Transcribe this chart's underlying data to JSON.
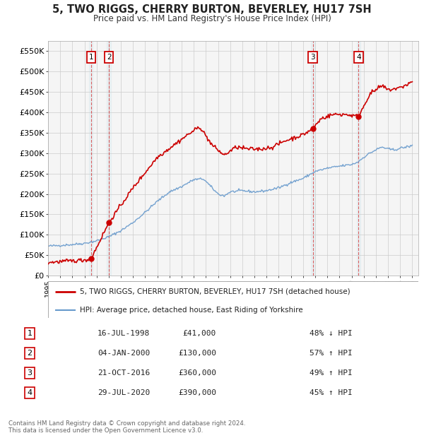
{
  "title": "5, TWO RIGGS, CHERRY BURTON, BEVERLEY, HU17 7SH",
  "subtitle": "Price paid vs. HM Land Registry's House Price Index (HPI)",
  "footer_line1": "Contains HM Land Registry data © Crown copyright and database right 2024.",
  "footer_line2": "This data is licensed under the Open Government Licence v3.0.",
  "legend_line1": "5, TWO RIGGS, CHERRY BURTON, BEVERLEY, HU17 7SH (detached house)",
  "legend_line2": "HPI: Average price, detached house, East Riding of Yorkshire",
  "sales_color": "#cc0000",
  "hpi_color": "#6699cc",
  "background_color": "#f5f5f5",
  "plot_bg": "#f5f5f5",
  "grid_color": "#cccccc",
  "ylim": [
    0,
    575000
  ],
  "yticks": [
    0,
    50000,
    100000,
    150000,
    200000,
    250000,
    300000,
    350000,
    400000,
    450000,
    500000,
    550000
  ],
  "ytick_labels": [
    "£0",
    "£50K",
    "£100K",
    "£150K",
    "£200K",
    "£250K",
    "£300K",
    "£350K",
    "£400K",
    "£450K",
    "£500K",
    "£550K"
  ],
  "sale_years_decimal": [
    1998.54,
    2000.01,
    2016.8,
    2020.57
  ],
  "sale_prices": [
    41000,
    130000,
    360000,
    390000
  ],
  "sale_labels": [
    "1",
    "2",
    "3",
    "4"
  ],
  "table_rows": [
    {
      "num": "1",
      "date": "16-JUL-1998",
      "price": "£41,000",
      "change": "48% ↓ HPI"
    },
    {
      "num": "2",
      "date": "04-JAN-2000",
      "price": "£130,000",
      "change": "57% ↑ HPI"
    },
    {
      "num": "3",
      "date": "21-OCT-2016",
      "price": "£360,000",
      "change": "49% ↑ HPI"
    },
    {
      "num": "4",
      "date": "29-JUL-2020",
      "price": "£390,000",
      "change": "45% ↑ HPI"
    }
  ],
  "hpi_anchors_x": [
    1995.0,
    1996.0,
    1997.0,
    1998.0,
    1999.0,
    2000.0,
    2001.0,
    2002.0,
    2003.0,
    2004.0,
    2005.0,
    2006.0,
    2007.0,
    2007.8,
    2008.5,
    2009.0,
    2009.5,
    2010.0,
    2011.0,
    2012.0,
    2013.0,
    2014.0,
    2015.0,
    2016.0,
    2017.0,
    2018.0,
    2019.0,
    2020.0,
    2020.5,
    2021.0,
    2021.5,
    2022.0,
    2022.5,
    2023.0,
    2023.5,
    2024.0,
    2024.5,
    2025.0
  ],
  "hpi_anchors_y": [
    72000,
    74000,
    76000,
    79000,
    85000,
    95000,
    110000,
    130000,
    155000,
    182000,
    205000,
    218000,
    235000,
    237000,
    215000,
    200000,
    195000,
    205000,
    208000,
    205000,
    208000,
    215000,
    228000,
    238000,
    255000,
    263000,
    268000,
    272000,
    278000,
    290000,
    300000,
    308000,
    315000,
    310000,
    308000,
    312000,
    315000,
    318000
  ],
  "prop_anchors_x": [
    1995.0,
    1998.0,
    1998.54,
    2000.01,
    2002.0,
    2004.0,
    2006.5,
    2007.5,
    2008.5,
    2009.5,
    2010.5,
    2011.5,
    2012.5,
    2013.5,
    2014.5,
    2016.0,
    2016.8,
    2017.5,
    2018.5,
    2019.5,
    2020.57,
    2021.5,
    2022.5,
    2023.0,
    2024.0,
    2025.0
  ],
  "prop_anchors_y": [
    32000,
    38000,
    41000,
    130000,
    215000,
    290000,
    345000,
    365000,
    320000,
    295000,
    315000,
    310000,
    310000,
    315000,
    330000,
    345000,
    360000,
    385000,
    395000,
    395000,
    390000,
    445000,
    465000,
    455000,
    460000,
    475000
  ]
}
